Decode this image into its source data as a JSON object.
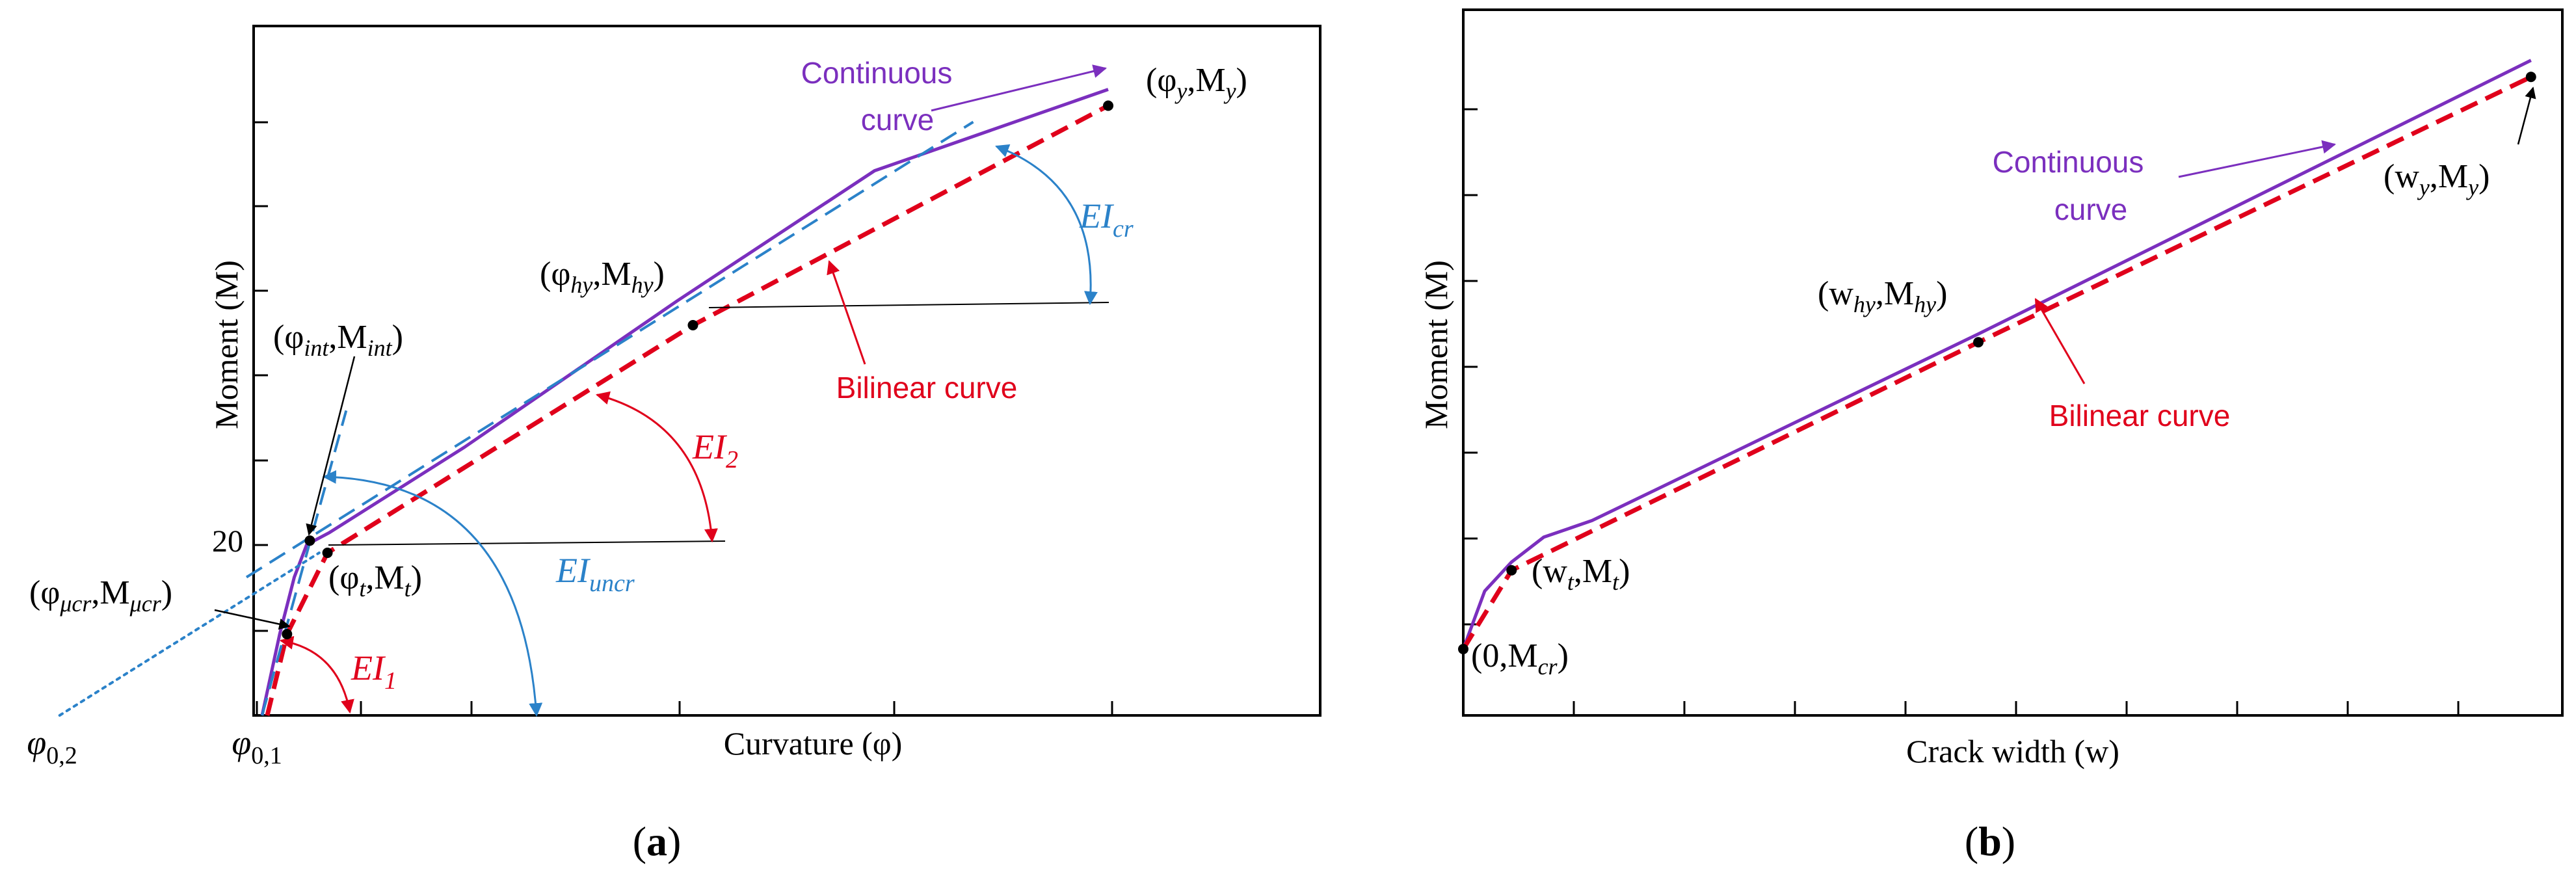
{
  "chart_data": [
    {
      "panel": "a",
      "type": "line",
      "panel_label": "(a)",
      "xlabel": "Curvature (φ)",
      "ylabel": "Moment (M)",
      "y_tick_label": "20",
      "x_tick_labels": {
        "phi02": {
          "base": "φ",
          "sub": "0,2"
        },
        "phi01": {
          "base": "φ",
          "sub": "0,1"
        }
      },
      "xlim": [
        -2,
        8
      ],
      "ylim": [
        0,
        80
      ],
      "series": [
        {
          "name": "Continuous curve",
          "color": "#7b2fbe",
          "style": "solid",
          "x": [
            0.05,
            0.22,
            0.36,
            0.48,
            0.7,
            2.0,
            4.05,
            5.95,
            8.2
          ],
          "y": [
            0,
            10,
            17,
            21,
            22.5,
            33,
            51,
            67,
            77
          ]
        },
        {
          "name": "Bilinear curve",
          "color": "#e0001b",
          "style": "dashed",
          "x": [
            0.1,
            0.29,
            0.68,
            4.2,
            8.2
          ],
          "y": [
            0,
            10,
            20,
            48,
            75
          ]
        },
        {
          "name": "EIcr tangent",
          "color": "#2b82c9",
          "style": "dashed",
          "x": [
            -0.1,
            6.9
          ],
          "y": [
            17,
            73
          ]
        },
        {
          "name": "EIuncr tangent",
          "color": "#2b82c9",
          "style": "dashed",
          "x": [
            0.05,
            0.86
          ],
          "y": [
            0,
            37.5
          ]
        },
        {
          "name": "Extension to φ0,2",
          "color": "#2b82c9",
          "style": "dotted",
          "x": [
            -1.9,
            0.6
          ],
          "y": [
            0,
            20
          ]
        }
      ],
      "points": {
        "mu_cr": {
          "x": 0.29,
          "y": 10,
          "label_base": "(φ",
          "label_sub1": "μcr",
          "label_mid": ",M",
          "label_sub2": "μcr",
          "label_end": ")"
        },
        "t": {
          "x": 0.68,
          "y": 20,
          "label_base": "(φ",
          "label_sub1": "t",
          "label_mid": ",M",
          "label_sub2": "t",
          "label_end": ")"
        },
        "int": {
          "x": 0.51,
          "y": 21.5,
          "label_base": "(φ",
          "label_sub1": "int",
          "label_mid": ",M",
          "label_sub2": "int",
          "label_end": ")"
        },
        "hy": {
          "x": 4.2,
          "y": 48,
          "label_base": "(φ",
          "label_sub1": "hy",
          "label_mid": ",M",
          "label_sub2": "hy",
          "label_end": ")"
        },
        "y": {
          "x": 8.2,
          "y": 75,
          "label_base": "(φ",
          "label_sub1": "y",
          "label_mid": ",M",
          "label_sub2": "y",
          "label_end": ")"
        }
      },
      "annotations": {
        "continuous": [
          "Continuous",
          "curve"
        ],
        "bilinear": "Bilinear curve",
        "EI1": {
          "base": "EI",
          "sub": "1"
        },
        "EI2": {
          "base": "EI",
          "sub": "2"
        },
        "EIcr": {
          "base": "EI",
          "sub": "cr"
        },
        "EIuncr": {
          "base": "EI",
          "sub": "uncr"
        }
      }
    },
    {
      "panel": "b",
      "type": "line",
      "panel_label": "(b)",
      "xlabel": "Crack width (w)",
      "ylabel": "Moment (M)",
      "xlim": [
        0,
        10
      ],
      "ylim": [
        0,
        80
      ],
      "series": [
        {
          "name": "Continuous curve",
          "color": "#7b2fbe",
          "style": "solid",
          "x": [
            0,
            0.2,
            0.45,
            0.75,
            1.2,
            4.8,
            9.95
          ],
          "y": [
            8,
            15,
            18.5,
            21.5,
            23.5,
            46,
            79
          ]
        },
        {
          "name": "Bilinear curve",
          "color": "#e0001b",
          "style": "dashed",
          "x": [
            0,
            0.45,
            4.8,
            9.95
          ],
          "y": [
            8,
            17.5,
            45,
            77
          ]
        }
      ],
      "points": {
        "cr": {
          "x": 0,
          "y": 8,
          "label_base": "(0,M",
          "label_sub1": "cr",
          "label_end": ")"
        },
        "t": {
          "x": 0.45,
          "y": 17.5,
          "label_base": "(w",
          "label_sub1": "t",
          "label_mid": ",M",
          "label_sub2": "t",
          "label_end": ")"
        },
        "hy": {
          "x": 4.8,
          "y": 45,
          "label_base": "(w",
          "label_sub1": "hy",
          "label_mid": ",M",
          "label_sub2": "hy",
          "label_end": ")"
        },
        "y": {
          "x": 9.95,
          "y": 77,
          "label_base": "(w",
          "label_sub1": "y",
          "label_mid": ",M",
          "label_sub2": "y",
          "label_end": ")"
        }
      },
      "annotations": {
        "continuous": [
          "Continuous",
          "curve"
        ],
        "bilinear": "Bilinear curve"
      }
    }
  ]
}
